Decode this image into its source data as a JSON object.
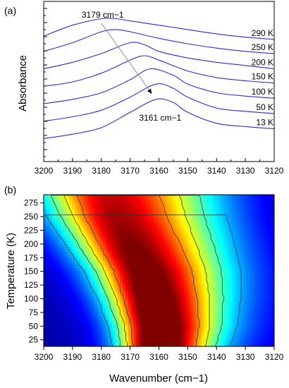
{
  "chart_data": [
    {
      "type": "line",
      "panel_label": "(a)",
      "xlabel": "",
      "ylabel": "Absorbance",
      "xlim": [
        3200,
        3120
      ],
      "x_reversed": true,
      "x_ticks": [
        3200,
        3190,
        3180,
        3170,
        3160,
        3150,
        3140,
        3130,
        3120
      ],
      "y_ticks_labeled": false,
      "grid": false,
      "series": [
        {
          "name": "290 K",
          "peak_x": 3179,
          "points": [
            [
              3200,
              0.55
            ],
            [
              3190,
              0.6
            ],
            [
              3180,
              0.63
            ],
            [
              3175,
              0.63
            ],
            [
              3170,
              0.62
            ],
            [
              3160,
              0.6
            ],
            [
              3150,
              0.58
            ],
            [
              3140,
              0.56
            ],
            [
              3130,
              0.545
            ],
            [
              3120,
              0.535
            ]
          ]
        },
        {
          "name": "250 K",
          "peak_x": 3176,
          "points": [
            [
              3200,
              0.48
            ],
            [
              3190,
              0.52
            ],
            [
              3180,
              0.57
            ],
            [
              3175,
              0.58
            ],
            [
              3170,
              0.57
            ],
            [
              3160,
              0.54
            ],
            [
              3150,
              0.515
            ],
            [
              3140,
              0.495
            ],
            [
              3130,
              0.48
            ],
            [
              3120,
              0.47
            ]
          ]
        },
        {
          "name": "200 K",
          "peak_x": 3171,
          "points": [
            [
              3200,
              0.4
            ],
            [
              3190,
              0.43
            ],
            [
              3180,
              0.47
            ],
            [
              3170,
              0.52
            ],
            [
              3165,
              0.51
            ],
            [
              3160,
              0.48
            ],
            [
              3150,
              0.45
            ],
            [
              3140,
              0.43
            ],
            [
              3130,
              0.415
            ],
            [
              3120,
              0.4
            ]
          ]
        },
        {
          "name": "150 K",
          "peak_x": 3166,
          "points": [
            [
              3200,
              0.32
            ],
            [
              3190,
              0.34
            ],
            [
              3180,
              0.38
            ],
            [
              3170,
              0.44
            ],
            [
              3165,
              0.46
            ],
            [
              3160,
              0.44
            ],
            [
              3150,
              0.39
            ],
            [
              3140,
              0.36
            ],
            [
              3130,
              0.345
            ],
            [
              3120,
              0.335
            ]
          ]
        },
        {
          "name": "100 K",
          "peak_x": 3163,
          "points": [
            [
              3200,
              0.24
            ],
            [
              3190,
              0.26
            ],
            [
              3180,
              0.29
            ],
            [
              3170,
              0.35
            ],
            [
              3163,
              0.4
            ],
            [
              3155,
              0.37
            ],
            [
              3150,
              0.33
            ],
            [
              3140,
              0.29
            ],
            [
              3130,
              0.275
            ],
            [
              3120,
              0.265
            ]
          ]
        },
        {
          "name": "50 K",
          "peak_x": 3161,
          "points": [
            [
              3200,
              0.16
            ],
            [
              3190,
              0.18
            ],
            [
              3180,
              0.21
            ],
            [
              3170,
              0.27
            ],
            [
              3161,
              0.33
            ],
            [
              3155,
              0.31
            ],
            [
              3150,
              0.27
            ],
            [
              3140,
              0.22
            ],
            [
              3130,
              0.205
            ],
            [
              3120,
              0.195
            ]
          ]
        },
        {
          "name": "13 K",
          "peak_x": 3161,
          "points": [
            [
              3200,
              0.08
            ],
            [
              3190,
              0.1
            ],
            [
              3180,
              0.13
            ],
            [
              3170,
              0.2
            ],
            [
              3161,
              0.26
            ],
            [
              3155,
              0.245
            ],
            [
              3150,
              0.2
            ],
            [
              3140,
              0.15
            ],
            [
              3130,
              0.135
            ],
            [
              3120,
              0.125
            ]
          ]
        }
      ],
      "annotations": [
        {
          "text": "3179 cm−1",
          "x": 3179
        },
        {
          "text": "3161 cm−1",
          "x": 3161
        }
      ],
      "series_colors": [
        "#2b2bd6"
      ]
    },
    {
      "type": "heatmap",
      "panel_label": "(b)",
      "xlabel": "Wavenumber (cm−1)",
      "ylabel": "Temperature (K)",
      "xlim": [
        3200,
        3120
      ],
      "x_reversed": true,
      "ylim": [
        13,
        290
      ],
      "x_ticks": [
        3200,
        3190,
        3180,
        3170,
        3160,
        3150,
        3140,
        3130,
        3120
      ],
      "y_ticks": [
        25,
        50,
        75,
        100,
        125,
        150,
        175,
        200,
        225,
        250,
        275
      ],
      "colormap": "jet",
      "peak_ridge": [
        [
          13,
          3161
        ],
        [
          50,
          3161
        ],
        [
          100,
          3163
        ],
        [
          150,
          3166
        ],
        [
          200,
          3171
        ],
        [
          250,
          3176
        ],
        [
          290,
          3179
        ]
      ]
    }
  ]
}
